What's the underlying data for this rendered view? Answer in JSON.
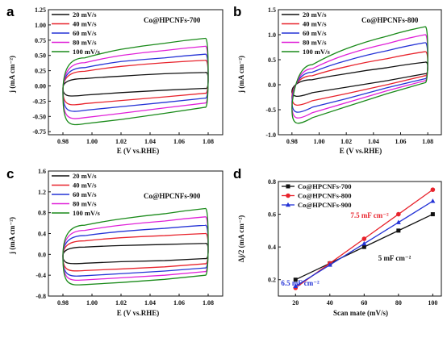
{
  "chart_data": [
    {
      "panel": "a",
      "type": "line",
      "title": "Co@HPCNFs-700",
      "xlabel": "E (V vs.RHE)",
      "ylabel": "j (mA cm⁻²)",
      "xlim": [
        0.97,
        1.09
      ],
      "ylim": [
        -0.8,
        1.25
      ],
      "xticks": [
        "0.98",
        "1.00",
        "1.02",
        "1.04",
        "1.06",
        "1.08"
      ],
      "yticks": [
        "-0.75",
        "-0.50",
        "-0.25",
        "0.00",
        "0.25",
        "0.50",
        "0.75",
        "1.00",
        "1.25"
      ],
      "legend_position": "top-left",
      "series": [
        {
          "name": "20 mV/s",
          "color": "#111111",
          "upper": [
            0.06,
            0.12,
            0.16,
            0.2,
            0.22
          ],
          "lower": [
            -0.18,
            -0.15,
            -0.11,
            -0.07,
            -0.04
          ]
        },
        {
          "name": "40 mV/s",
          "color": "#e8232c",
          "upper": [
            0.12,
            0.24,
            0.32,
            0.38,
            0.42
          ],
          "lower": [
            -0.33,
            -0.29,
            -0.24,
            -0.18,
            -0.12
          ]
        },
        {
          "name": "60 mV/s",
          "color": "#2433d6",
          "upper": [
            0.16,
            0.3,
            0.4,
            0.46,
            0.52
          ],
          "lower": [
            -0.44,
            -0.4,
            -0.34,
            -0.27,
            -0.2
          ]
        },
        {
          "name": "80 mV/s",
          "color": "#e020d8",
          "upper": [
            0.2,
            0.38,
            0.5,
            0.58,
            0.65
          ],
          "lower": [
            -0.56,
            -0.52,
            -0.45,
            -0.36,
            -0.28
          ]
        },
        {
          "name": "100 mV/s",
          "color": "#1a8a1a",
          "upper": [
            0.26,
            0.46,
            0.6,
            0.7,
            0.78
          ],
          "lower": [
            -0.66,
            -0.62,
            -0.55,
            -0.45,
            -0.35
          ]
        }
      ]
    },
    {
      "panel": "b",
      "type": "line",
      "title": "Co@HPCNFs-800",
      "xlabel": "E (V vs.RHE)",
      "ylabel": "j (mA cm⁻²)",
      "xlim": [
        0.97,
        1.09
      ],
      "ylim": [
        -1.0,
        1.5
      ],
      "xticks": [
        "0.98",
        "1.00",
        "1.02",
        "1.04",
        "1.06",
        "1.08"
      ],
      "yticks": [
        "-1.0",
        "-0.5",
        "0.0",
        "0.5",
        "1.0",
        "1.5"
      ],
      "legend_position": "top-left",
      "series": [
        {
          "name": "20 mV/s",
          "color": "#111111",
          "upper": [
            -0.05,
            0.1,
            0.22,
            0.34,
            0.45
          ],
          "lower": [
            -0.26,
            -0.16,
            -0.05,
            0.08,
            0.22
          ]
        },
        {
          "name": "40 mV/s",
          "color": "#e8232c",
          "upper": [
            -0.1,
            0.18,
            0.36,
            0.52,
            0.66
          ],
          "lower": [
            -0.45,
            -0.32,
            -0.18,
            0.0,
            0.18
          ]
        },
        {
          "name": "60 mV/s",
          "color": "#2433d6",
          "upper": [
            -0.15,
            0.25,
            0.48,
            0.68,
            0.84
          ],
          "lower": [
            -0.6,
            -0.45,
            -0.28,
            -0.06,
            0.12
          ]
        },
        {
          "name": "80 mV/s",
          "color": "#e020d8",
          "upper": [
            -0.2,
            0.32,
            0.6,
            0.82,
            1.0
          ],
          "lower": [
            -0.72,
            -0.56,
            -0.36,
            -0.12,
            0.08
          ]
        },
        {
          "name": "100 mV/s",
          "color": "#1a8a1a",
          "upper": [
            -0.25,
            0.4,
            0.72,
            0.97,
            1.16
          ],
          "lower": [
            -0.83,
            -0.66,
            -0.44,
            -0.18,
            0.04
          ]
        }
      ]
    },
    {
      "panel": "c",
      "type": "line",
      "title": "Co@HPCNFs-900",
      "xlabel": "E (V vs.RHE)",
      "ylabel": "j (mA cm⁻²)",
      "xlim": [
        0.97,
        1.09
      ],
      "ylim": [
        -0.8,
        1.6
      ],
      "xticks": [
        "0.98",
        "1.00",
        "1.02",
        "1.04",
        "1.06",
        "1.08"
      ],
      "yticks": [
        "-0.8",
        "-0.4",
        "0.0",
        "0.4",
        "0.8",
        "1.2",
        "1.6"
      ],
      "legend_position": "top-left",
      "series": [
        {
          "name": "20 mV/s",
          "color": "#111111",
          "upper": [
            0.08,
            0.14,
            0.17,
            0.19,
            0.21
          ],
          "lower": [
            -0.19,
            -0.17,
            -0.14,
            -0.12,
            -0.08
          ]
        },
        {
          "name": "40 mV/s",
          "color": "#e8232c",
          "upper": [
            0.16,
            0.26,
            0.32,
            0.36,
            0.4
          ],
          "lower": [
            -0.33,
            -0.31,
            -0.28,
            -0.24,
            -0.18
          ]
        },
        {
          "name": "60 mV/s",
          "color": "#2433d6",
          "upper": [
            0.22,
            0.36,
            0.44,
            0.5,
            0.56
          ],
          "lower": [
            -0.43,
            -0.41,
            -0.37,
            -0.32,
            -0.26
          ]
        },
        {
          "name": "80 mV/s",
          "color": "#e020d8",
          "upper": [
            0.28,
            0.46,
            0.56,
            0.64,
            0.72
          ],
          "lower": [
            -0.51,
            -0.49,
            -0.45,
            -0.4,
            -0.33
          ]
        },
        {
          "name": "100 mV/s",
          "color": "#1a8a1a",
          "upper": [
            0.34,
            0.56,
            0.68,
            0.78,
            0.88
          ],
          "lower": [
            -0.6,
            -0.58,
            -0.54,
            -0.48,
            -0.4
          ]
        }
      ]
    },
    {
      "panel": "d",
      "type": "line",
      "xlabel": "Scan mate (mV/s)",
      "ylabel": "Δj/2 (mA cm⁻²)",
      "xlim": [
        10,
        105
      ],
      "ylim": [
        0.1,
        0.8
      ],
      "xticks": [
        "20",
        "40",
        "60",
        "80",
        "100"
      ],
      "yticks": [
        "0.2",
        "0.4",
        "0.6",
        "0.8"
      ],
      "legend_position": "top-left",
      "x": [
        20,
        40,
        60,
        80,
        100
      ],
      "series": [
        {
          "name": "Co@HPCNFs-700",
          "color": "#111111",
          "marker": "square",
          "values": [
            0.2,
            0.3,
            0.4,
            0.5,
            0.6
          ]
        },
        {
          "name": "Co@HPCNFs-800",
          "color": "#e8232c",
          "marker": "circle",
          "values": [
            0.15,
            0.3,
            0.45,
            0.6,
            0.75
          ]
        },
        {
          "name": "Co@HPCNFs-900",
          "color": "#2433d6",
          "marker": "triangle",
          "values": [
            0.16,
            0.29,
            0.42,
            0.55,
            0.68
          ]
        }
      ],
      "annotations": [
        {
          "text": "7.5 mF cm⁻²",
          "color": "#e8232c"
        },
        {
          "text": "5 mF cm⁻²",
          "color": "#111111"
        },
        {
          "text": "6.5 mF cm⁻²",
          "color": "#2433d6"
        }
      ]
    }
  ]
}
